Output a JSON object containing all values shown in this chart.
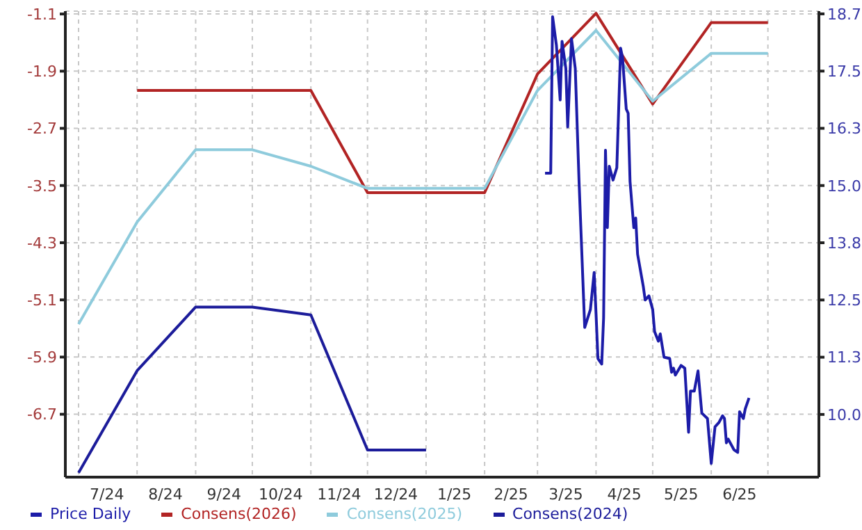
{
  "chart_data": {
    "type": "line",
    "xlim": [
      "2024-06-24",
      "2025-07-28"
    ],
    "xticks": [
      {
        "value": "2024-07-01",
        "label": null
      },
      {
        "value": "2024-07-16",
        "label": "7/24"
      },
      {
        "value": "2024-08-01",
        "label": null
      },
      {
        "value": "2024-08-16",
        "label": "8/24"
      },
      {
        "value": "2024-09-01",
        "label": null
      },
      {
        "value": "2024-09-16",
        "label": "9/24"
      },
      {
        "value": "2024-10-01",
        "label": null
      },
      {
        "value": "2024-10-16",
        "label": "10/24"
      },
      {
        "value": "2024-11-01",
        "label": null
      },
      {
        "value": "2024-11-16",
        "label": "11/24"
      },
      {
        "value": "2024-12-01",
        "label": null
      },
      {
        "value": "2024-12-16",
        "label": "12/24"
      },
      {
        "value": "2025-01-01",
        "label": null
      },
      {
        "value": "2025-01-16",
        "label": "1/25"
      },
      {
        "value": "2025-02-01",
        "label": null
      },
      {
        "value": "2025-02-15",
        "label": "2/25"
      },
      {
        "value": "2025-03-01",
        "label": null
      },
      {
        "value": "2025-03-16",
        "label": "3/25"
      },
      {
        "value": "2025-04-01",
        "label": null
      },
      {
        "value": "2025-04-16",
        "label": "4/25"
      },
      {
        "value": "2025-05-01",
        "label": null
      },
      {
        "value": "2025-05-16",
        "label": "5/25"
      },
      {
        "value": "2025-06-01",
        "label": null
      },
      {
        "value": "2025-06-16",
        "label": "6/25"
      },
      {
        "value": "2025-07-01",
        "label": null
      }
    ],
    "ylim": [
      -7.58,
      -1.06
    ],
    "yticks": [
      -1.1,
      -1.9,
      -2.7,
      -3.5,
      -4.3,
      -5.1,
      -5.9,
      -6.7
    ],
    "y2lim": [
      8.63,
      18.81
    ],
    "y2ticks": [
      {
        "value": 10,
        "label": "10.0"
      },
      {
        "value": 11.25,
        "label": "11.3"
      },
      {
        "value": 12.5,
        "label": "12.5"
      },
      {
        "value": 13.75,
        "label": "13.8"
      },
      {
        "value": 15,
        "label": "15.0"
      },
      {
        "value": 16.25,
        "label": "16.3"
      },
      {
        "value": 17.5,
        "label": "17.5"
      },
      {
        "value": 18.75,
        "label": "18.7"
      }
    ],
    "grid": true,
    "legend": "bottom",
    "marker": "none",
    "line_style": "solid",
    "series": [
      {
        "name": "Price Daily",
        "color": "#1c1ca8",
        "axis": "y2",
        "x": [
          "2025-03-05",
          "2025-03-08",
          "2025-03-09",
          "2025-03-11",
          "2025-03-13",
          "2025-03-14",
          "2025-03-16",
          "2025-03-17",
          "2025-03-19",
          "2025-03-21",
          "2025-03-23",
          "2025-03-26",
          "2025-03-29",
          "2025-03-31",
          "2025-04-01",
          "2025-04-02",
          "2025-04-04",
          "2025-04-05",
          "2025-04-06",
          "2025-04-07",
          "2025-04-08",
          "2025-04-10",
          "2025-04-12",
          "2025-04-14",
          "2025-04-15",
          "2025-04-17",
          "2025-04-18",
          "2025-04-19",
          "2025-04-21",
          "2025-04-22",
          "2025-04-23",
          "2025-04-26",
          "2025-04-27",
          "2025-04-29",
          "2025-05-01",
          "2025-05-02",
          "2025-05-04",
          "2025-05-05",
          "2025-05-07",
          "2025-05-10",
          "2025-05-11",
          "2025-05-12",
          "2025-05-13",
          "2025-05-16",
          "2025-05-18",
          "2025-05-20",
          "2025-05-21",
          "2025-05-23",
          "2025-05-25",
          "2025-05-27",
          "2025-05-30",
          "2025-06-01",
          "2025-06-03",
          "2025-06-05",
          "2025-06-07",
          "2025-06-08",
          "2025-06-09",
          "2025-06-10",
          "2025-06-13",
          "2025-06-15",
          "2025-06-16",
          "2025-06-18",
          "2025-06-19",
          "2025-06-21"
        ],
        "values": [
          15.27,
          15.27,
          18.69,
          18.07,
          16.87,
          18.15,
          17.56,
          16.28,
          18.21,
          17.56,
          15.09,
          11.9,
          12.29,
          13.1,
          12.2,
          11.22,
          11.1,
          12.11,
          15.77,
          14.08,
          15.42,
          15.12,
          15.39,
          18.0,
          17.8,
          16.67,
          16.58,
          15.09,
          14.08,
          14.29,
          13.5,
          12.8,
          12.5,
          12.59,
          12.29,
          11.81,
          11.6,
          11.76,
          11.25,
          11.22,
          10.92,
          11.01,
          10.86,
          11.07,
          11.01,
          9.61,
          10.51,
          10.51,
          10.95,
          10.03,
          9.91,
          8.93,
          9.73,
          9.82,
          9.97,
          9.91,
          9.38,
          9.46,
          9.23,
          9.17,
          10.06,
          9.91,
          10.12,
          10.36
        ]
      },
      {
        "name": "Consens(2026)",
        "color": "#b22424",
        "x": [
          "2024-08-01",
          "2024-09-01",
          "2024-10-01",
          "2024-11-01",
          "2024-12-01",
          "2025-01-01",
          "2025-02-01",
          "2025-03-01",
          "2025-04-01",
          "2025-05-01",
          "2025-06-01",
          "2025-07-01"
        ],
        "values": [
          -2.17,
          -2.17,
          -2.17,
          -2.17,
          -3.6,
          -3.6,
          -3.6,
          -1.94,
          -1.09,
          -2.36,
          -1.22,
          -1.22
        ]
      },
      {
        "name": "Consens(2025)",
        "color": "#8ecbdc",
        "x": [
          "2024-07-01",
          "2024-08-01",
          "2024-09-01",
          "2024-10-01",
          "2024-11-01",
          "2024-12-01",
          "2025-01-01",
          "2025-02-01",
          "2025-03-01",
          "2025-04-01",
          "2025-05-01",
          "2025-06-01",
          "2025-07-01"
        ],
        "values": [
          -5.44,
          -4.01,
          -3.0,
          -3.0,
          -3.23,
          -3.54,
          -3.54,
          -3.54,
          -2.17,
          -1.33,
          -2.32,
          -1.65,
          -1.65
        ]
      },
      {
        "name": "Consens(2024)",
        "color": "#1c1c9a",
        "x": [
          "2024-07-01",
          "2024-08-01",
          "2024-09-01",
          "2024-10-01",
          "2024-11-01",
          "2024-12-01",
          "2025-01-01"
        ],
        "values": [
          -7.52,
          -6.09,
          -5.2,
          -5.2,
          -5.31,
          -7.2,
          -7.2
        ]
      }
    ]
  }
}
